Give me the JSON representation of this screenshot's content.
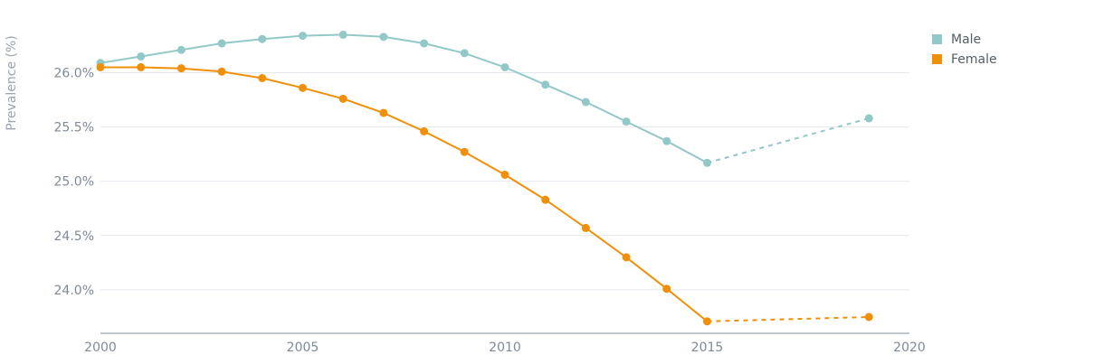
{
  "chart_data": {
    "type": "line",
    "title": "",
    "xlabel": "",
    "ylabel": "Prevalence (%)",
    "xlim": [
      2000,
      2020
    ],
    "ylim": [
      23.6,
      26.42
    ],
    "x_ticks": [
      2000,
      2005,
      2010,
      2015,
      2020
    ],
    "x_tick_labels": [
      "2000",
      "2005",
      "2010",
      "2015",
      "2020"
    ],
    "y_ticks": [
      24.0,
      24.5,
      25.0,
      25.5,
      26.0
    ],
    "y_tick_labels": [
      "24.0%",
      "24.5%",
      "25.0%",
      "25.5%",
      "26.0%"
    ],
    "grid": "horizontal",
    "legend": "top-right",
    "series": [
      {
        "name": "Male",
        "color": "#93c8c8",
        "x": [
          2000,
          2001,
          2002,
          2003,
          2004,
          2005,
          2006,
          2007,
          2008,
          2009,
          2010,
          2011,
          2012,
          2013,
          2014,
          2015
        ],
        "values": [
          26.09,
          26.15,
          26.21,
          26.27,
          26.31,
          26.34,
          26.35,
          26.33,
          26.27,
          26.18,
          26.05,
          25.89,
          25.73,
          25.55,
          25.37,
          25.17
        ],
        "projection": {
          "x": [
            2015,
            2019
          ],
          "values": [
            25.17,
            25.58
          ]
        }
      },
      {
        "name": "Female",
        "color": "#f0900a",
        "x": [
          2000,
          2001,
          2002,
          2003,
          2004,
          2005,
          2006,
          2007,
          2008,
          2009,
          2010,
          2011,
          2012,
          2013,
          2014,
          2015
        ],
        "values": [
          26.05,
          26.05,
          26.04,
          26.01,
          25.95,
          25.86,
          25.76,
          25.63,
          25.46,
          25.27,
          25.06,
          24.83,
          24.57,
          24.3,
          24.01,
          23.71
        ],
        "projection": {
          "x": [
            2015,
            2019
          ],
          "values": [
            23.71,
            23.75
          ]
        }
      }
    ]
  }
}
